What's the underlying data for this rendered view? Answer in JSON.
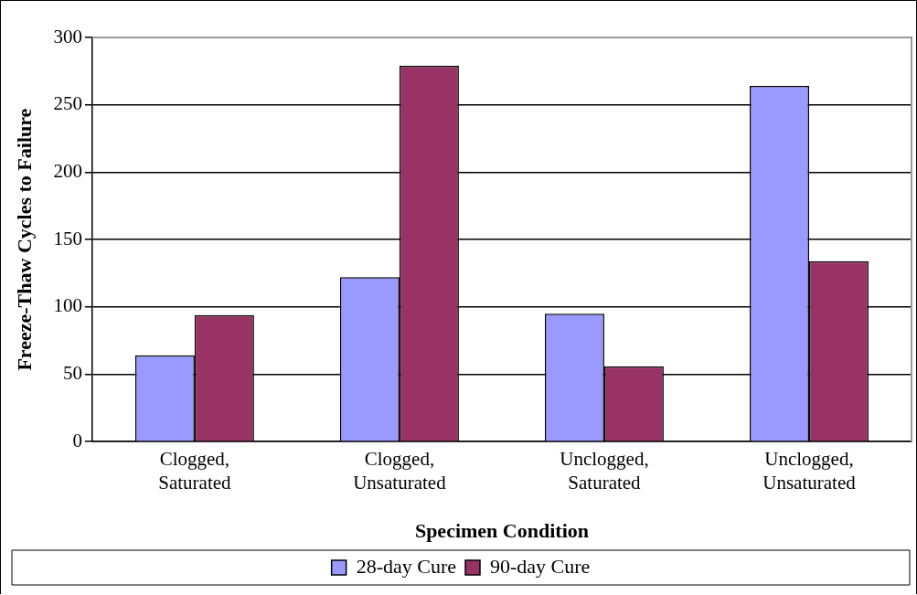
{
  "chart_data": {
    "type": "bar",
    "xlabel": "Specimen Condition",
    "ylabel": "Freeze-Thaw Cycles to Failure",
    "categories": [
      "Clogged, Saturated",
      "Clogged, Unsaturated",
      "Unclogged, Saturated",
      "Unclogged, Unsaturated"
    ],
    "series": [
      {
        "name": "28-day Cure",
        "color": "#9999ff",
        "values": [
          64,
          122,
          95,
          264
        ]
      },
      {
        "name": "90-day Cure",
        "color": "#993366",
        "values": [
          94,
          279,
          56,
          134
        ]
      }
    ],
    "ylim": [
      0,
      300
    ],
    "yticks": [
      0,
      50,
      100,
      150,
      200,
      250,
      300
    ],
    "grid": "y",
    "legend": "bottom"
  }
}
